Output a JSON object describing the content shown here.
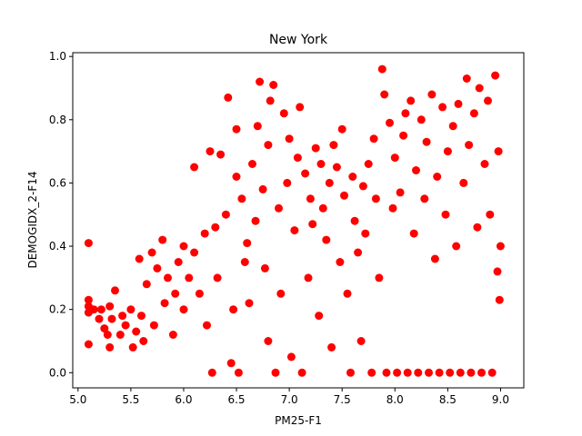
{
  "chart_data": {
    "type": "scatter",
    "title": "New York",
    "xlabel": "PM25-F1",
    "ylabel": "DEMOGIDX_2-F14",
    "xlim": [
      4.95,
      9.22
    ],
    "ylim": [
      -0.048,
      1.012
    ],
    "xticks": [
      5.0,
      5.5,
      6.0,
      6.5,
      7.0,
      7.5,
      8.0,
      8.5,
      9.0
    ],
    "xtick_labels": [
      "5.0",
      "5.5",
      "6.0",
      "6.5",
      "7.0",
      "7.5",
      "8.0",
      "8.5",
      "9.0"
    ],
    "yticks": [
      0.0,
      0.2,
      0.4,
      0.6,
      0.8,
      1.0
    ],
    "ytick_labels": [
      "0.0",
      "0.2",
      "0.4",
      "0.6",
      "0.8",
      "1.0"
    ],
    "grid": false,
    "legend": "none",
    "marker_color": "#ff0000",
    "series": [
      {
        "points": [
          [
            5.1,
            0.41
          ],
          [
            5.1,
            0.23
          ],
          [
            5.1,
            0.21
          ],
          [
            5.1,
            0.19
          ],
          [
            5.1,
            0.09
          ],
          [
            5.15,
            0.2
          ],
          [
            5.2,
            0.17
          ],
          [
            5.22,
            0.2
          ],
          [
            5.25,
            0.14
          ],
          [
            5.28,
            0.12
          ],
          [
            5.3,
            0.08
          ],
          [
            5.3,
            0.21
          ],
          [
            5.32,
            0.17
          ],
          [
            5.35,
            0.26
          ],
          [
            5.4,
            0.12
          ],
          [
            5.42,
            0.18
          ],
          [
            5.45,
            0.15
          ],
          [
            5.5,
            0.2
          ],
          [
            5.52,
            0.08
          ],
          [
            5.55,
            0.13
          ],
          [
            5.58,
            0.36
          ],
          [
            5.6,
            0.18
          ],
          [
            5.62,
            0.1
          ],
          [
            5.65,
            0.28
          ],
          [
            5.7,
            0.38
          ],
          [
            5.72,
            0.15
          ],
          [
            5.75,
            0.33
          ],
          [
            5.8,
            0.42
          ],
          [
            5.82,
            0.22
          ],
          [
            5.85,
            0.3
          ],
          [
            5.9,
            0.12
          ],
          [
            5.92,
            0.25
          ],
          [
            5.95,
            0.35
          ],
          [
            6.0,
            0.4
          ],
          [
            6.0,
            0.2
          ],
          [
            6.05,
            0.3
          ],
          [
            6.1,
            0.65
          ],
          [
            6.1,
            0.38
          ],
          [
            6.15,
            0.25
          ],
          [
            6.2,
            0.44
          ],
          [
            6.22,
            0.15
          ],
          [
            6.25,
            0.7
          ],
          [
            6.27,
            0.0
          ],
          [
            6.3,
            0.46
          ],
          [
            6.32,
            0.3
          ],
          [
            6.35,
            0.69
          ],
          [
            6.4,
            0.5
          ],
          [
            6.42,
            0.87
          ],
          [
            6.45,
            0.03
          ],
          [
            6.47,
            0.2
          ],
          [
            6.5,
            0.77
          ],
          [
            6.5,
            0.62
          ],
          [
            6.52,
            0.0
          ],
          [
            6.55,
            0.55
          ],
          [
            6.58,
            0.35
          ],
          [
            6.6,
            0.41
          ],
          [
            6.62,
            0.22
          ],
          [
            6.65,
            0.66
          ],
          [
            6.68,
            0.48
          ],
          [
            6.7,
            0.78
          ],
          [
            6.72,
            0.92
          ],
          [
            6.75,
            0.58
          ],
          [
            6.77,
            0.33
          ],
          [
            6.8,
            0.72
          ],
          [
            6.8,
            0.1
          ],
          [
            6.82,
            0.86
          ],
          [
            6.85,
            0.91
          ],
          [
            6.87,
            0.0
          ],
          [
            6.9,
            0.52
          ],
          [
            6.92,
            0.25
          ],
          [
            6.95,
            0.82
          ],
          [
            6.98,
            0.6
          ],
          [
            7.0,
            0.74
          ],
          [
            7.02,
            0.05
          ],
          [
            7.05,
            0.45
          ],
          [
            7.08,
            0.68
          ],
          [
            7.1,
            0.84
          ],
          [
            7.12,
            0.0
          ],
          [
            7.15,
            0.63
          ],
          [
            7.18,
            0.3
          ],
          [
            7.2,
            0.55
          ],
          [
            7.22,
            0.47
          ],
          [
            7.25,
            0.71
          ],
          [
            7.28,
            0.18
          ],
          [
            7.3,
            0.66
          ],
          [
            7.32,
            0.52
          ],
          [
            7.35,
            0.42
          ],
          [
            7.38,
            0.6
          ],
          [
            7.4,
            0.08
          ],
          [
            7.42,
            0.72
          ],
          [
            7.45,
            0.65
          ],
          [
            7.48,
            0.35
          ],
          [
            7.5,
            0.77
          ],
          [
            7.52,
            0.56
          ],
          [
            7.55,
            0.25
          ],
          [
            7.58,
            0.0
          ],
          [
            7.6,
            0.62
          ],
          [
            7.62,
            0.48
          ],
          [
            7.65,
            0.38
          ],
          [
            7.68,
            0.1
          ],
          [
            7.7,
            0.59
          ],
          [
            7.72,
            0.44
          ],
          [
            7.75,
            0.66
          ],
          [
            7.78,
            0.0
          ],
          [
            7.8,
            0.74
          ],
          [
            7.82,
            0.55
          ],
          [
            7.85,
            0.3
          ],
          [
            7.88,
            0.96
          ],
          [
            7.9,
            0.88
          ],
          [
            7.92,
            0.0
          ],
          [
            7.95,
            0.79
          ],
          [
            7.98,
            0.52
          ],
          [
            8.0,
            0.68
          ],
          [
            8.02,
            0.0
          ],
          [
            8.05,
            0.57
          ],
          [
            8.08,
            0.75
          ],
          [
            8.1,
            0.82
          ],
          [
            8.12,
            0.0
          ],
          [
            8.15,
            0.86
          ],
          [
            8.18,
            0.44
          ],
          [
            8.2,
            0.64
          ],
          [
            8.22,
            0.0
          ],
          [
            8.25,
            0.8
          ],
          [
            8.28,
            0.55
          ],
          [
            8.3,
            0.73
          ],
          [
            8.32,
            0.0
          ],
          [
            8.35,
            0.88
          ],
          [
            8.38,
            0.36
          ],
          [
            8.4,
            0.62
          ],
          [
            8.42,
            0.0
          ],
          [
            8.45,
            0.84
          ],
          [
            8.48,
            0.5
          ],
          [
            8.5,
            0.7
          ],
          [
            8.52,
            0.0
          ],
          [
            8.55,
            0.78
          ],
          [
            8.58,
            0.4
          ],
          [
            8.6,
            0.85
          ],
          [
            8.62,
            0.0
          ],
          [
            8.65,
            0.6
          ],
          [
            8.68,
            0.93
          ],
          [
            8.7,
            0.72
          ],
          [
            8.72,
            0.0
          ],
          [
            8.75,
            0.82
          ],
          [
            8.78,
            0.46
          ],
          [
            8.8,
            0.9
          ],
          [
            8.82,
            0.0
          ],
          [
            8.85,
            0.66
          ],
          [
            8.88,
            0.86
          ],
          [
            8.9,
            0.5
          ],
          [
            8.92,
            0.0
          ],
          [
            8.95,
            0.94
          ],
          [
            8.97,
            0.32
          ],
          [
            8.98,
            0.7
          ],
          [
            8.99,
            0.23
          ],
          [
            9.0,
            0.4
          ]
        ]
      }
    ]
  }
}
